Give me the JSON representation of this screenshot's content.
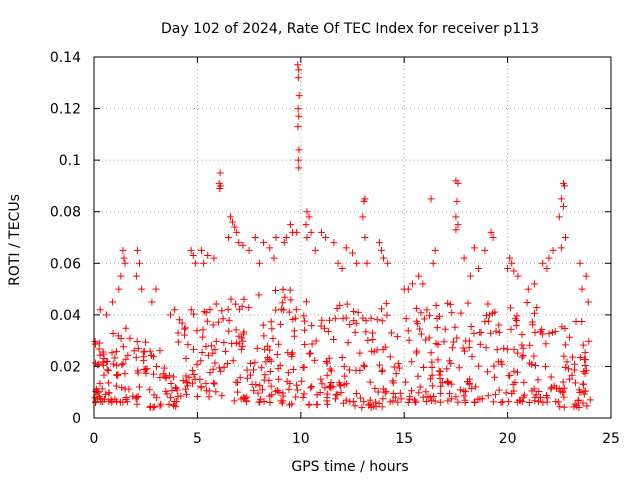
{
  "chart_data": {
    "type": "scatter",
    "title": "Day 102 of 2024, Rate Of TEC Index for receiver p113",
    "xlabel": "GPS time / hours",
    "ylabel": "ROTI / TECUs",
    "xlim": [
      0,
      25
    ],
    "ylim": [
      0,
      0.14
    ],
    "xticks": [
      "0",
      "5",
      "10",
      "15",
      "20",
      "25"
    ],
    "yticks": [
      "0",
      "0.02",
      "0.04",
      "0.06",
      "0.08",
      "0.1",
      "0.12",
      "0.14"
    ],
    "grid": true,
    "marker": "+",
    "color": "#ff0000",
    "bands": [
      {
        "x0": 0.0,
        "x1": 0.5,
        "y0": 0.006,
        "y1": 0.03,
        "n": 30
      },
      {
        "x0": 0.5,
        "x1": 2.0,
        "y0": 0.006,
        "y1": 0.035,
        "n": 45
      },
      {
        "x0": 2.0,
        "x1": 3.2,
        "y0": 0.004,
        "y1": 0.03,
        "n": 35
      },
      {
        "x0": 3.2,
        "x1": 4.0,
        "y0": 0.004,
        "y1": 0.02,
        "n": 20
      },
      {
        "x0": 4.0,
        "x1": 6.5,
        "y0": 0.008,
        "y1": 0.045,
        "n": 70
      },
      {
        "x0": 6.5,
        "x1": 9.0,
        "y0": 0.006,
        "y1": 0.05,
        "n": 80
      },
      {
        "x0": 9.0,
        "x1": 11.5,
        "y0": 0.005,
        "y1": 0.05,
        "n": 80
      },
      {
        "x0": 11.5,
        "x1": 14.5,
        "y0": 0.004,
        "y1": 0.045,
        "n": 85
      },
      {
        "x0": 14.5,
        "x1": 17.0,
        "y0": 0.006,
        "y1": 0.045,
        "n": 70
      },
      {
        "x0": 17.0,
        "x1": 20.0,
        "y0": 0.006,
        "y1": 0.045,
        "n": 80
      },
      {
        "x0": 20.0,
        "x1": 22.5,
        "y0": 0.006,
        "y1": 0.045,
        "n": 70
      },
      {
        "x0": 22.5,
        "x1": 24.0,
        "y0": 0.004,
        "y1": 0.04,
        "n": 50
      }
    ],
    "points": [
      [
        9.85,
        0.137
      ],
      [
        9.9,
        0.135
      ],
      [
        9.88,
        0.132
      ],
      [
        9.92,
        0.125
      ],
      [
        9.87,
        0.12
      ],
      [
        9.9,
        0.117
      ],
      [
        9.86,
        0.113
      ],
      [
        9.91,
        0.104
      ],
      [
        9.88,
        0.1
      ],
      [
        9.9,
        0.097
      ],
      [
        6.1,
        0.095
      ],
      [
        6.05,
        0.091
      ],
      [
        6.12,
        0.09
      ],
      [
        6.08,
        0.089
      ],
      [
        17.5,
        0.092
      ],
      [
        17.6,
        0.091
      ],
      [
        17.55,
        0.084
      ],
      [
        17.5,
        0.078
      ],
      [
        17.6,
        0.075
      ],
      [
        17.5,
        0.073
      ],
      [
        22.7,
        0.091
      ],
      [
        22.75,
        0.09
      ],
      [
        22.6,
        0.085
      ],
      [
        22.7,
        0.082
      ],
      [
        22.5,
        0.078
      ],
      [
        22.8,
        0.07
      ],
      [
        22.6,
        0.066
      ],
      [
        13.1,
        0.085
      ],
      [
        13.05,
        0.084
      ],
      [
        13.0,
        0.078
      ],
      [
        13.1,
        0.07
      ],
      [
        13.2,
        0.06
      ],
      [
        16.3,
        0.085
      ],
      [
        16.5,
        0.065
      ],
      [
        16.4,
        0.06
      ],
      [
        10.3,
        0.08
      ],
      [
        10.4,
        0.078
      ],
      [
        10.25,
        0.075
      ],
      [
        10.5,
        0.072
      ],
      [
        10.3,
        0.07
      ],
      [
        9.5,
        0.075
      ],
      [
        9.6,
        0.072
      ],
      [
        9.3,
        0.07
      ],
      [
        9.8,
        0.072
      ],
      [
        6.6,
        0.078
      ],
      [
        6.7,
        0.076
      ],
      [
        6.8,
        0.074
      ],
      [
        6.5,
        0.07
      ],
      [
        7.0,
        0.068
      ],
      [
        7.2,
        0.067
      ],
      [
        6.9,
        0.072
      ],
      [
        7.8,
        0.07
      ],
      [
        8.2,
        0.068
      ],
      [
        8.5,
        0.066
      ],
      [
        8.8,
        0.07
      ],
      [
        9.2,
        0.068
      ],
      [
        11.0,
        0.072
      ],
      [
        11.2,
        0.07
      ],
      [
        11.6,
        0.068
      ],
      [
        12.2,
        0.066
      ],
      [
        12.5,
        0.064
      ],
      [
        12.7,
        0.06
      ],
      [
        13.8,
        0.068
      ],
      [
        13.9,
        0.065
      ],
      [
        14.2,
        0.06
      ],
      [
        14.0,
        0.062
      ],
      [
        19.2,
        0.072
      ],
      [
        19.3,
        0.07
      ],
      [
        18.9,
        0.065
      ],
      [
        18.4,
        0.066
      ],
      [
        17.9,
        0.062
      ],
      [
        20.1,
        0.062
      ],
      [
        20.2,
        0.06
      ],
      [
        20.3,
        0.057
      ],
      [
        20.5,
        0.055
      ],
      [
        20.0,
        0.058
      ],
      [
        21.7,
        0.06
      ],
      [
        22.0,
        0.062
      ],
      [
        21.9,
        0.058
      ],
      [
        22.2,
        0.065
      ],
      [
        23.5,
        0.06
      ],
      [
        1.4,
        0.065
      ],
      [
        1.45,
        0.062
      ],
      [
        1.5,
        0.06
      ],
      [
        1.3,
        0.055
      ],
      [
        1.2,
        0.05
      ],
      [
        2.1,
        0.065
      ],
      [
        2.2,
        0.06
      ],
      [
        2.05,
        0.055
      ],
      [
        2.3,
        0.05
      ],
      [
        4.7,
        0.065
      ],
      [
        4.8,
        0.063
      ],
      [
        4.9,
        0.06
      ],
      [
        5.2,
        0.065
      ],
      [
        5.5,
        0.063
      ],
      [
        5.8,
        0.062
      ],
      [
        5.3,
        0.06
      ],
      [
        0.9,
        0.045
      ],
      [
        0.6,
        0.04
      ],
      [
        0.3,
        0.042
      ],
      [
        2.8,
        0.045
      ],
      [
        3.0,
        0.05
      ],
      [
        3.7,
        0.04
      ],
      [
        3.9,
        0.042
      ],
      [
        15.2,
        0.05
      ],
      [
        15.4,
        0.052
      ],
      [
        15.0,
        0.05
      ],
      [
        15.9,
        0.052
      ],
      [
        15.7,
        0.055
      ],
      [
        23.8,
        0.055
      ],
      [
        23.6,
        0.05
      ],
      [
        23.9,
        0.045
      ],
      [
        21.0,
        0.05
      ],
      [
        21.3,
        0.052
      ],
      [
        18.2,
        0.055
      ],
      [
        18.6,
        0.058
      ],
      [
        7.5,
        0.065
      ],
      [
        8.0,
        0.06
      ],
      [
        8.7,
        0.062
      ],
      [
        10.7,
        0.065
      ],
      [
        11.8,
        0.06
      ],
      [
        12.0,
        0.058
      ]
    ]
  }
}
